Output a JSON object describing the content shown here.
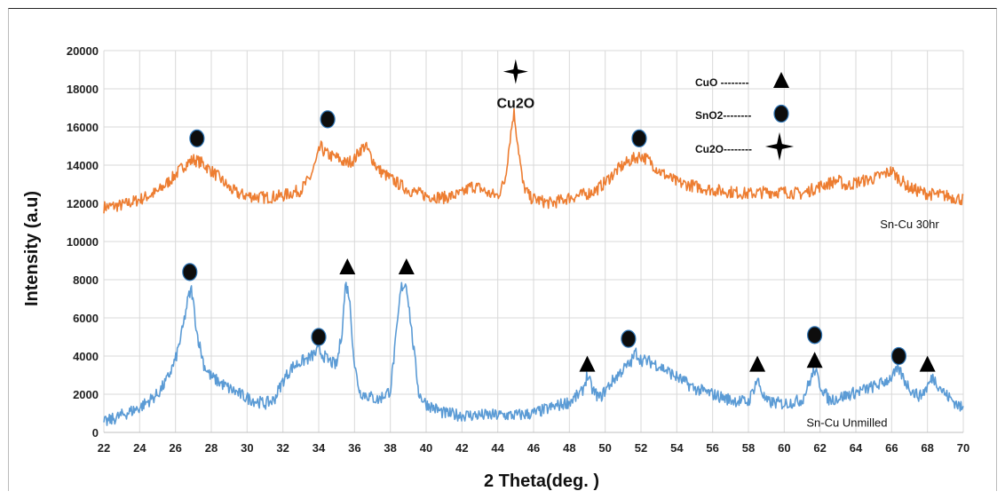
{
  "chart_data": {
    "type": "line",
    "title": "",
    "xlabel": "2 Theta(deg. )",
    "ylabel": "Intensity (a.u)",
    "xlim": [
      22,
      70
    ],
    "ylim": [
      0,
      20000
    ],
    "xticks": [
      22,
      24,
      26,
      28,
      30,
      32,
      34,
      36,
      38,
      40,
      42,
      44,
      46,
      48,
      50,
      52,
      54,
      56,
      58,
      60,
      62,
      64,
      66,
      68,
      70
    ],
    "yticks": [
      0,
      2000,
      4000,
      6000,
      8000,
      10000,
      12000,
      14000,
      16000,
      18000,
      20000
    ],
    "grid": true,
    "series": [
      {
        "name": "Sn-Cu 30hr",
        "color": "#ED7D31",
        "x": [
          22,
          23,
          24,
          25,
          25.8,
          26.5,
          27,
          27.5,
          28,
          28.5,
          29,
          29.5,
          30,
          31,
          32,
          33,
          33.5,
          33.9,
          34.1,
          34.3,
          34.6,
          35,
          35.5,
          36,
          36.3,
          36.6,
          36.9,
          37.3,
          38,
          39,
          40,
          41,
          42,
          42.5,
          43,
          43.5,
          44,
          44.4,
          44.7,
          44.9,
          45.1,
          45.4,
          45.8,
          46.5,
          47,
          48,
          49,
          49.5,
          50,
          50.5,
          51,
          51.5,
          52,
          52.5,
          53,
          54,
          55,
          56,
          57,
          58,
          59,
          60,
          61,
          62,
          63,
          63.5,
          64,
          65,
          65.5,
          66,
          66.3,
          67,
          68,
          69,
          70
        ],
        "y": [
          11800,
          11900,
          12200,
          12600,
          13300,
          14000,
          14300,
          14100,
          13700,
          13300,
          12800,
          12500,
          12400,
          12300,
          12400,
          12700,
          13300,
          14300,
          15000,
          14700,
          14500,
          14400,
          14100,
          14300,
          14800,
          15000,
          14500,
          13800,
          13300,
          12700,
          12400,
          12300,
          12500,
          12900,
          12800,
          12500,
          12400,
          13200,
          15500,
          16800,
          15300,
          13000,
          12300,
          12100,
          12000,
          12300,
          12500,
          12700,
          13100,
          13600,
          14000,
          14300,
          14500,
          14200,
          13700,
          13100,
          12900,
          12700,
          12600,
          12500,
          12600,
          12600,
          12500,
          12900,
          13200,
          12900,
          13100,
          13300,
          13500,
          13700,
          13400,
          12800,
          12500,
          12400,
          12200
        ]
      },
      {
        "name": "Sn-Cu Unmilled",
        "color": "#5B9BD5",
        "x": [
          22,
          23,
          24,
          25,
          25.5,
          26,
          26.4,
          26.7,
          26.9,
          27.2,
          27.6,
          28,
          29,
          30,
          31,
          31.5,
          32,
          32.5,
          33,
          33.5,
          34,
          34.5,
          35,
          35.3,
          35.5,
          35.7,
          36,
          36.3,
          36.8,
          37.3,
          38,
          38.3,
          38.6,
          38.9,
          39.2,
          39.6,
          40,
          41,
          42,
          43,
          44,
          45,
          46,
          47,
          48,
          48.7,
          49,
          49.3,
          49.7,
          50,
          50.5,
          51,
          51.4,
          51.7,
          52,
          52.5,
          53,
          53.5,
          54,
          55,
          56,
          57,
          58,
          58.3,
          58.5,
          58.8,
          59,
          60,
          61,
          61.4,
          61.7,
          62,
          62.5,
          63,
          64,
          65,
          65.5,
          66,
          66.4,
          66.8,
          67.2,
          67.6,
          68,
          68.3,
          68.6,
          69,
          70
        ],
        "y": [
          500,
          900,
          1300,
          2000,
          2700,
          3800,
          5400,
          7000,
          7500,
          5200,
          3500,
          2900,
          2300,
          1800,
          1500,
          1700,
          2700,
          3400,
          3700,
          3900,
          4300,
          3800,
          3500,
          5300,
          7800,
          7200,
          3500,
          2100,
          1900,
          1700,
          2200,
          4800,
          7600,
          7800,
          5200,
          2000,
          1500,
          1000,
          900,
          900,
          900,
          900,
          1000,
          1300,
          1600,
          2100,
          3000,
          2200,
          1800,
          2200,
          2800,
          3300,
          3600,
          4200,
          3800,
          3700,
          3500,
          3200,
          2900,
          2300,
          2000,
          1700,
          1600,
          2300,
          2800,
          2000,
          1600,
          1500,
          1700,
          2600,
          3300,
          2500,
          1700,
          1800,
          2100,
          2400,
          2600,
          2900,
          3300,
          2600,
          2100,
          1900,
          2400,
          2900,
          2500,
          2000,
          1200
        ]
      }
    ],
    "markers": [
      {
        "shape": "circle",
        "x": 27.2,
        "y": 15400
      },
      {
        "shape": "circle",
        "x": 34.5,
        "y": 16400
      },
      {
        "shape": "circle",
        "x": 51.9,
        "y": 15400
      },
      {
        "shape": "star",
        "x": 45.0,
        "y": 18900
      },
      {
        "shape": "circle",
        "x": 26.8,
        "y": 8400
      },
      {
        "shape": "circle",
        "x": 34.0,
        "y": 5000
      },
      {
        "shape": "triangle",
        "x": 35.6,
        "y": 8700
      },
      {
        "shape": "triangle",
        "x": 38.9,
        "y": 8700
      },
      {
        "shape": "triangle",
        "x": 49.0,
        "y": 3600
      },
      {
        "shape": "circle",
        "x": 51.3,
        "y": 4900
      },
      {
        "shape": "triangle",
        "x": 58.5,
        "y": 3600
      },
      {
        "shape": "circle",
        "x": 61.7,
        "y": 5100
      },
      {
        "shape": "triangle",
        "x": 61.7,
        "y": 3800
      },
      {
        "shape": "circle",
        "x": 66.4,
        "y": 4000
      },
      {
        "shape": "triangle",
        "x": 68.0,
        "y": 3600
      }
    ],
    "annotations": [
      {
        "text": "Cu2O",
        "x": 45.0,
        "y": 17000
      }
    ],
    "series_labels": [
      {
        "text": "Sn-Cu 30hr",
        "x": 67.0,
        "y": 10700
      },
      {
        "text": "Sn-Cu Unmilled",
        "x": 63.5,
        "y": 300
      }
    ],
    "legend": {
      "position": "top-right",
      "entries": [
        {
          "label": "CuO --------",
          "shape": "triangle"
        },
        {
          "label": "SnO2--------",
          "shape": "circle"
        },
        {
          "label": "Cu2O--------",
          "shape": "star"
        }
      ]
    }
  }
}
